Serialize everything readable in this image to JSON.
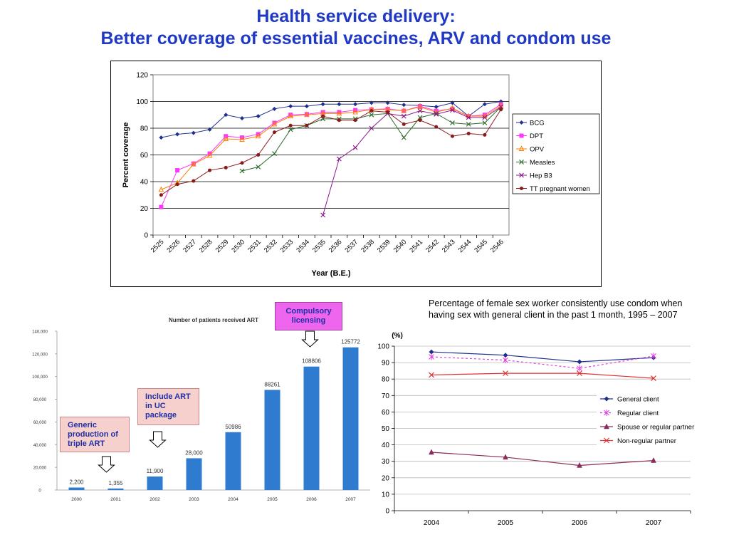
{
  "header": {
    "title_line1": "Health service delivery:",
    "title_line2": "Better coverage of essential vaccines, ARV and condom use"
  },
  "colors": {
    "title": "#1f39c4",
    "bcg": "#1f2f8c",
    "dpt": "#ff33ff",
    "opv": "#ff8000",
    "measles": "#2e6b2e",
    "hepb3": "#8b1a8b",
    "tt": "#8b1a1a",
    "art_bar": "#2f7bd0",
    "general_client": "#1f2f8c",
    "regular_client": "#e040e0",
    "spouse": "#8b2b5a",
    "non_regular": "#e03030"
  },
  "chart_data": [
    {
      "type": "line",
      "xlabel": "Year (B.E.)",
      "ylabel": "Percent coverage",
      "ylim": [
        0,
        120
      ],
      "yticks": [
        0,
        20,
        40,
        60,
        80,
        100,
        120
      ],
      "grid": true,
      "legend": "right",
      "categories": [
        "2525",
        "2526",
        "2527",
        "2528",
        "2529",
        "2530",
        "2531",
        "2532",
        "2533",
        "2534",
        "2535",
        "2536",
        "2537",
        "2538",
        "2539",
        "2540",
        "2541",
        "2542",
        "2543",
        "2544",
        "2545",
        "2546"
      ],
      "series": [
        {
          "name": "BCG",
          "marker": "diamond",
          "values": [
            73,
            75.5,
            76.5,
            79,
            90,
            87.5,
            89,
            94.5,
            96.5,
            96.5,
            98,
            98,
            98,
            99,
            99,
            97.5,
            97,
            96,
            99,
            89,
            98,
            100
          ]
        },
        {
          "name": "DPT",
          "marker": "square",
          "values": [
            21,
            48.5,
            53.5,
            61,
            74,
            73,
            75.5,
            84,
            90,
            90.5,
            92,
            92,
            93.5,
            94,
            94.5,
            93,
            96.5,
            93,
            94.5,
            89,
            90,
            98
          ]
        },
        {
          "name": "OPV",
          "marker": "triangle",
          "values": [
            34,
            39,
            53,
            59.5,
            72,
            71.5,
            74,
            83,
            89,
            90,
            91,
            91,
            92,
            94,
            94,
            93,
            96,
            92,
            95,
            89,
            89,
            97
          ]
        },
        {
          "name": "Measles",
          "marker": "x",
          "values": [
            null,
            null,
            null,
            null,
            null,
            48,
            51,
            61,
            79,
            82,
            87,
            87,
            87,
            90,
            91,
            73,
            88,
            91,
            84,
            83,
            84,
            96
          ]
        },
        {
          "name": "Hep B3",
          "marker": "x",
          "values": [
            null,
            null,
            null,
            null,
            null,
            null,
            null,
            null,
            null,
            null,
            15,
            57,
            65.5,
            80,
            91,
            89,
            93,
            90.5,
            93.5,
            88,
            88,
            96
          ]
        },
        {
          "name": "TT pregnant women",
          "marker": "circle",
          "values": [
            30,
            38,
            40.5,
            48.5,
            50.5,
            54,
            60,
            77,
            82,
            82,
            89,
            86,
            86,
            93,
            92,
            83,
            86,
            81,
            74,
            76,
            75,
            94
          ]
        }
      ]
    },
    {
      "type": "bar",
      "title": "Number of patients received ART",
      "categories": [
        "2000",
        "2001",
        "2002",
        "2003",
        "2004",
        "2005",
        "2006",
        "2007"
      ],
      "values": [
        2200,
        1355,
        11900,
        28000,
        50986,
        88261,
        108806,
        125772
      ],
      "value_labels": [
        "2,200",
        "1,355",
        "11,900",
        "28,000",
        "50986",
        "88261",
        "108806",
        "125772"
      ],
      "ylim": [
        0,
        140000
      ],
      "yticks": [
        0,
        20000,
        40000,
        60000,
        80000,
        100000,
        120000,
        140000
      ],
      "ytick_labels": [
        "0",
        "20,000",
        "40,000",
        "60,000",
        "80,000",
        "100,000",
        "120,000",
        "140,000"
      ],
      "annotations": [
        {
          "text": "Generic production of triple ART",
          "at": "2001"
        },
        {
          "text": "Include ART in UC package",
          "at": "2002"
        },
        {
          "text": "Compulsory licensing",
          "at": "2006"
        }
      ]
    },
    {
      "type": "line",
      "title": "Percentage of female sex worker consistently use condom when having sex with general client in the past 1 month, 1995 – 2007",
      "ylabel": "(%)",
      "ylim": [
        0,
        100
      ],
      "yticks": [
        0,
        10,
        20,
        30,
        40,
        50,
        60,
        70,
        80,
        90,
        100
      ],
      "grid": true,
      "legend": "right",
      "categories": [
        "2004",
        "2005",
        "2006",
        "2007"
      ],
      "series": [
        {
          "name": "General client",
          "marker": "diamond",
          "values": [
            96.5,
            94.5,
            90.5,
            93
          ]
        },
        {
          "name": "Regular client",
          "marker": "asterisk",
          "dashed": true,
          "values": [
            93.5,
            91.5,
            86.5,
            94
          ]
        },
        {
          "name": "Spouse or regular partner",
          "marker": "triangle",
          "values": [
            35.5,
            32.5,
            27.5,
            30.5
          ]
        },
        {
          "name": "Non-regular partner",
          "marker": "x",
          "values": [
            82.5,
            83.5,
            83.5,
            80.5
          ]
        }
      ]
    }
  ],
  "annotations_text": {
    "generic": "Generic production of triple ART",
    "include": "Include ART in UC package",
    "compulsory": "Compulsory licensing"
  }
}
